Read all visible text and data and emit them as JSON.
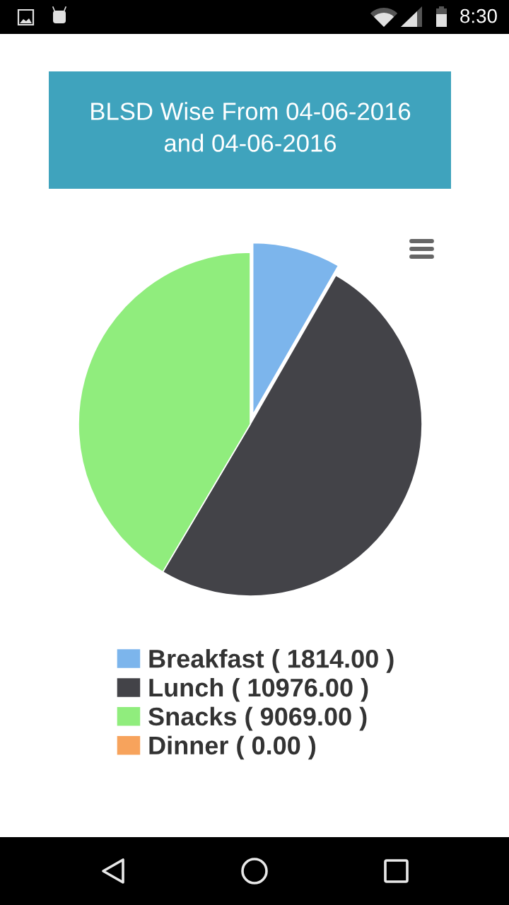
{
  "chart_data": {
    "type": "pie",
    "title": "BLSD Wise From 04-06-2016\nand 04-06-2016",
    "categories": [
      "Breakfast",
      "Lunch",
      "Snacks",
      "Dinner"
    ],
    "values": [
      1814,
      10976,
      9069,
      0
    ],
    "value_labels": [
      "( 1814.00 )",
      "( 10976.00 )",
      "( 9069.00 )",
      "( 0.00 )"
    ],
    "colors": [
      "#7cb5ec",
      "#434348",
      "#90ed7d",
      "#f7a35c"
    ],
    "legend": "bottom",
    "annotations": [
      "8:30"
    ]
  }
}
